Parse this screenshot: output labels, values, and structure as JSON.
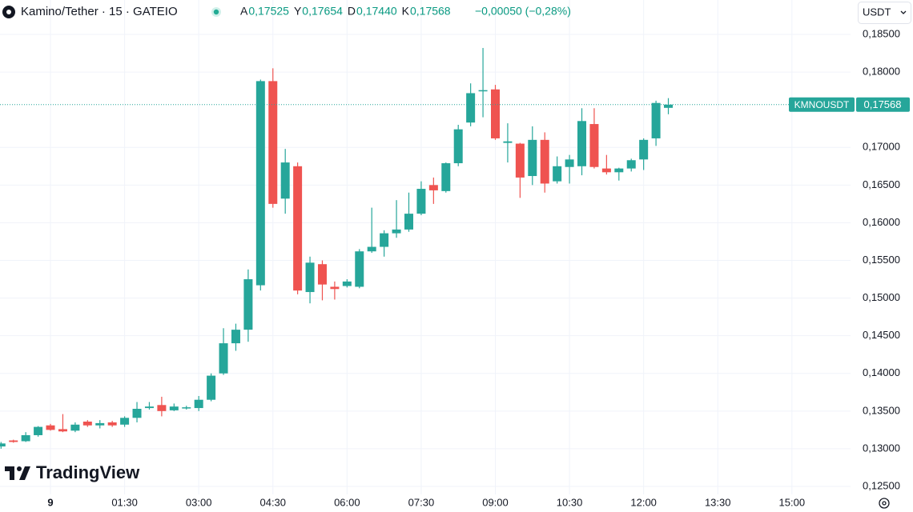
{
  "header": {
    "symbol": "Kamino/Tether · 15 · GATEIO",
    "ohlc": [
      {
        "key": "A",
        "value": "0,17525"
      },
      {
        "key": "Y",
        "value": "0,17654"
      },
      {
        "key": "D",
        "value": "0,17440"
      },
      {
        "key": "K",
        "value": "0,17568"
      }
    ],
    "change": "−0,00050 (−0,28%)",
    "currency": "USDT"
  },
  "logo": "TradingView",
  "last_price_label": {
    "symbol": "KMNOUSDT",
    "price": "0,17568"
  },
  "chart_data": {
    "type": "candlestick",
    "up_color": "#26a69a",
    "down_color": "#ef5350",
    "grid": true,
    "xtick_labels": [
      "9",
      "01:30",
      "03:00",
      "04:30",
      "06:00",
      "07:30",
      "09:00",
      "10:30",
      "12:00",
      "13:30",
      "15:00"
    ],
    "ylim": [
      0.1225,
      0.1875
    ],
    "yticks": [
      {
        "value": 0.125,
        "label": "0,12500"
      },
      {
        "value": 0.13,
        "label": "0,13000"
      },
      {
        "value": 0.135,
        "label": "0,13500"
      },
      {
        "value": 0.14,
        "label": "0,14000"
      },
      {
        "value": 0.145,
        "label": "0,14500"
      },
      {
        "value": 0.15,
        "label": "0,15000"
      },
      {
        "value": 0.155,
        "label": "0,15500"
      },
      {
        "value": 0.16,
        "label": "0,16000"
      },
      {
        "value": 0.165,
        "label": "0,16500"
      },
      {
        "value": 0.17,
        "label": "0,17000"
      },
      {
        "value": 0.18,
        "label": "0,18000"
      },
      {
        "value": 0.185,
        "label": "0,18500"
      }
    ],
    "open": [
      0.1303,
      0.1311,
      0.131,
      0.1318,
      0.1331,
      0.1326,
      0.1324,
      0.1336,
      0.1331,
      0.1335,
      0.1332,
      0.1341,
      0.1354,
      0.1358,
      0.1351,
      0.1354,
      0.1354,
      0.1365,
      0.14,
      0.144,
      0.1458,
      0.1517,
      0.1788,
      0.1632,
      0.1675,
      0.1508,
      0.1545,
      0.1515,
      0.1516,
      0.1515,
      0.1562,
      0.1568,
      0.1586,
      0.1591,
      0.1612,
      0.165,
      0.1642,
      0.1679,
      0.1733,
      0.1775,
      0.1777,
      0.1706,
      0.1705,
      0.1662,
      0.171,
      0.1655,
      0.1674,
      0.1675,
      0.1731,
      0.1672,
      0.1667,
      0.1672,
      0.1684,
      0.1712,
      0.17525
    ],
    "high": [
      0.1309,
      0.1312,
      0.1322,
      0.133,
      0.1333,
      0.1346,
      0.1335,
      0.1338,
      0.1338,
      0.1337,
      0.1343,
      0.1362,
      0.1362,
      0.1369,
      0.136,
      0.1357,
      0.137,
      0.14,
      0.146,
      0.1466,
      0.1538,
      0.179,
      0.1805,
      0.1698,
      0.168,
      0.1555,
      0.155,
      0.1522,
      0.1525,
      0.1565,
      0.162,
      0.159,
      0.163,
      0.164,
      0.1655,
      0.166,
      0.168,
      0.173,
      0.1785,
      0.1832,
      0.1783,
      0.1732,
      0.1706,
      0.1728,
      0.172,
      0.1688,
      0.169,
      0.1752,
      0.1752,
      0.169,
      0.1673,
      0.1685,
      0.1712,
      0.1762,
      0.17654
    ],
    "low": [
      0.13,
      0.1308,
      0.1309,
      0.1316,
      0.1324,
      0.1322,
      0.1322,
      0.1329,
      0.1327,
      0.1329,
      0.1329,
      0.1335,
      0.1352,
      0.1343,
      0.135,
      0.1352,
      0.135,
      0.1363,
      0.1398,
      0.143,
      0.1442,
      0.151,
      0.162,
      0.1612,
      0.1505,
      0.1493,
      0.1497,
      0.1498,
      0.1514,
      0.1513,
      0.156,
      0.1555,
      0.158,
      0.1588,
      0.161,
      0.1625,
      0.164,
      0.1675,
      0.1728,
      0.174,
      0.171,
      0.168,
      0.1633,
      0.165,
      0.164,
      0.1652,
      0.1652,
      0.1663,
      0.1672,
      0.1664,
      0.1656,
      0.1668,
      0.167,
      0.1702,
      0.1744
    ],
    "close": [
      0.1307,
      0.1309,
      0.1318,
      0.1329,
      0.1325,
      0.1323,
      0.1332,
      0.1331,
      0.1334,
      0.1331,
      0.1341,
      0.1353,
      0.1356,
      0.135,
      0.1356,
      0.1355,
      0.1365,
      0.1397,
      0.144,
      0.1458,
      0.1525,
      0.1788,
      0.1625,
      0.168,
      0.151,
      0.1547,
      0.1518,
      0.1512,
      0.1522,
      0.1562,
      0.1568,
      0.1586,
      0.1591,
      0.1612,
      0.1645,
      0.1643,
      0.1679,
      0.1724,
      0.1772,
      0.1776,
      0.1712,
      0.1708,
      0.166,
      0.171,
      0.1652,
      0.1675,
      0.1684,
      0.1735,
      0.1674,
      0.1667,
      0.1672,
      0.1683,
      0.171,
      0.1759,
      0.17568
    ]
  }
}
